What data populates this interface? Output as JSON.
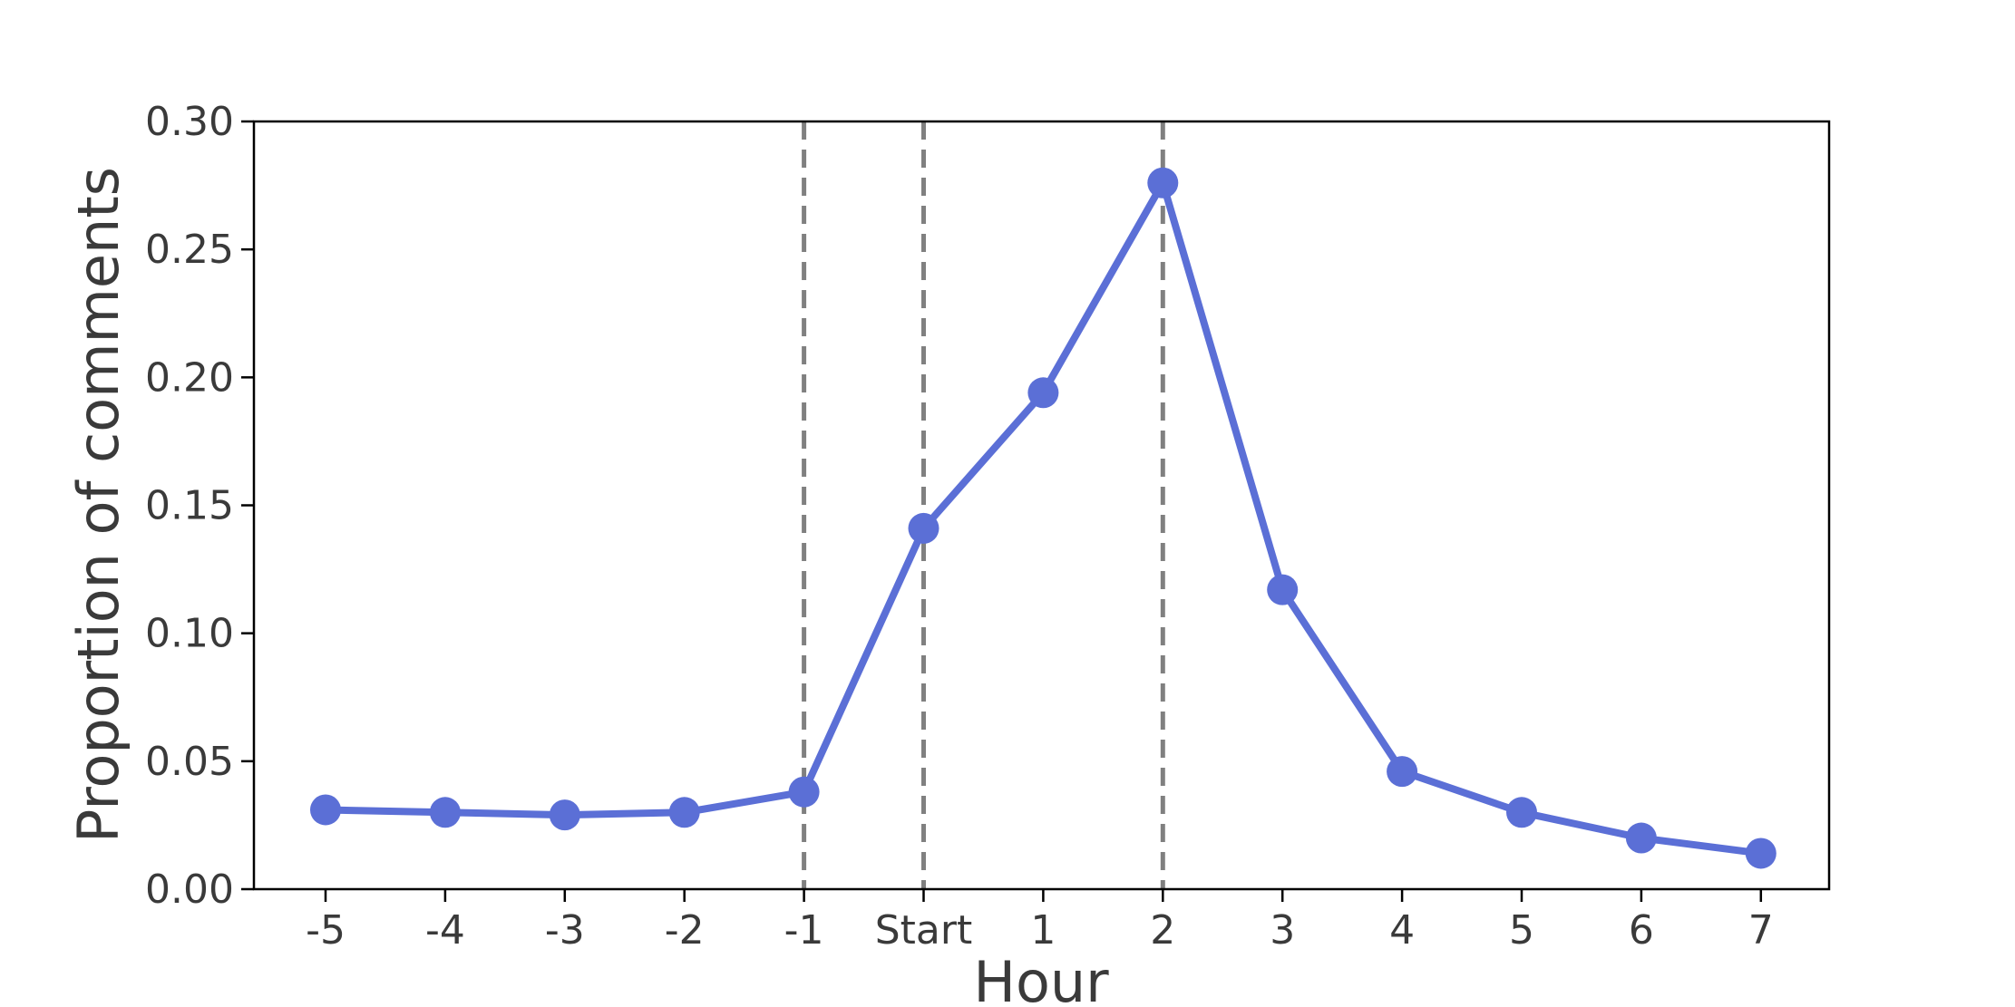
{
  "chart_data": {
    "type": "line",
    "title": "",
    "xlabel": "Hour",
    "ylabel": "Proportion of comments",
    "categories": [
      "-5",
      "-4",
      "-3",
      "-2",
      "-1",
      "Start",
      "1",
      "2",
      "3",
      "4",
      "5",
      "6",
      "7"
    ],
    "series": [
      {
        "values": [
          0.031,
          0.03,
          0.029,
          0.03,
          0.038,
          0.141,
          0.194,
          0.276,
          0.117,
          0.046,
          0.03,
          0.02,
          0.014
        ],
        "color": "#5b6fd6",
        "marker": "circle"
      }
    ],
    "ylim": [
      0.0,
      0.3
    ],
    "yticks": [
      "0.00",
      "0.05",
      "0.10",
      "0.15",
      "0.20",
      "0.25",
      "0.30"
    ],
    "reference_lines": {
      "x_categories": [
        "-1",
        "Start",
        "2"
      ],
      "style": "dashed",
      "color": "#808080"
    },
    "grid": false,
    "legend": "none"
  }
}
